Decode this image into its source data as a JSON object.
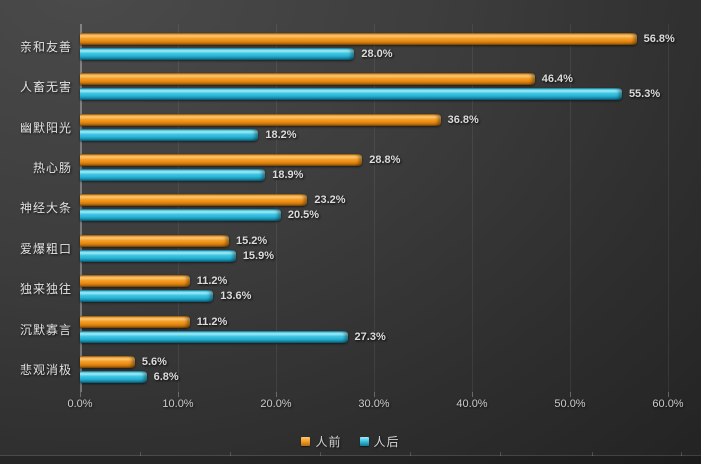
{
  "chart_data": {
    "type": "bar",
    "orientation": "horizontal",
    "title": "",
    "xlabel": "",
    "ylabel": "",
    "categories": [
      "亲和友善",
      "人畜无害",
      "幽默阳光",
      "热心肠",
      "神经大条",
      "爱爆粗口",
      "独来独往",
      "沉默寡言",
      "悲观消极"
    ],
    "series": [
      {
        "name": "人前",
        "color": "#EE8E1A",
        "values": [
          56.8,
          46.4,
          36.8,
          28.8,
          23.2,
          15.2,
          11.2,
          11.2,
          5.6
        ],
        "labels": [
          "56.8%",
          "46.4%",
          "36.8%",
          "28.8%",
          "23.2%",
          "15.2%",
          "11.2%",
          "11.2%",
          "5.6%"
        ]
      },
      {
        "name": "人后",
        "color": "#2FBBDB",
        "values": [
          28.0,
          55.3,
          18.2,
          18.9,
          20.5,
          15.9,
          13.6,
          27.3,
          6.8
        ],
        "labels": [
          "28.0%",
          "55.3%",
          "18.2%",
          "18.9%",
          "20.5%",
          "15.9%",
          "13.6%",
          "27.3%",
          "6.8%"
        ]
      }
    ],
    "xlim": [
      0,
      60
    ],
    "xticks": [
      "0.0%",
      "10.0%",
      "20.0%",
      "30.0%",
      "40.0%",
      "50.0%",
      "60.0%"
    ],
    "grid": true,
    "data_labels": true,
    "legend_position": "bottom-center"
  },
  "colors": {
    "background_start": "#4B4B4B",
    "background_end": "#222222",
    "series_front": "#EE8E1A",
    "series_back": "#2FBBDB",
    "gridline": "#4D4D4D",
    "axis_line": "#8A8A8A",
    "text": "#D9D9D9"
  }
}
